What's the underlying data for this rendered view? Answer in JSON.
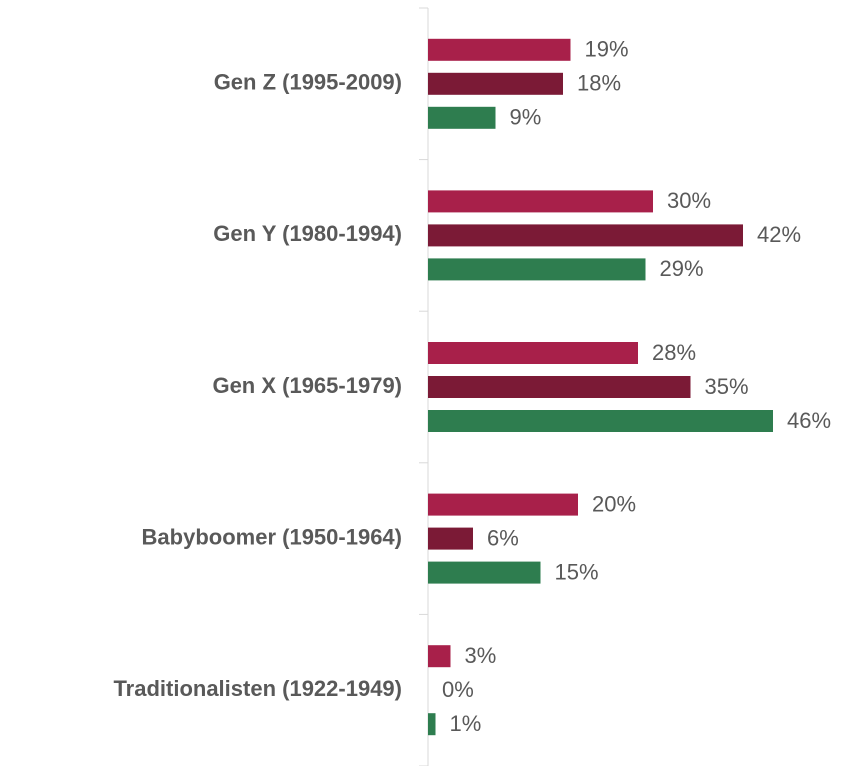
{
  "chart_data": {
    "type": "bar",
    "orientation": "horizontal",
    "categories": [
      "Gen Z (1995-2009)",
      "Gen Y (1980-1994)",
      "Gen X (1965-1979)",
      "Babyboomer (1950-1964)",
      "Traditionalisten (1922-1949)"
    ],
    "series": [
      {
        "color": "#a8204a",
        "values": [
          19,
          30,
          28,
          20,
          3
        ],
        "value_labels": [
          "19%",
          "30%",
          "28%",
          "20%",
          "3%"
        ]
      },
      {
        "color": "#7b1a36",
        "values": [
          18,
          42,
          35,
          6,
          0
        ],
        "value_labels": [
          "18%",
          "42%",
          "35%",
          "6%",
          "0%"
        ]
      },
      {
        "color": "#2e7d4f",
        "values": [
          9,
          29,
          46,
          15,
          1
        ],
        "value_labels": [
          "9%",
          "29%",
          "46%",
          "15%",
          "1%"
        ]
      }
    ],
    "xlim": [
      0,
      50
    ]
  }
}
